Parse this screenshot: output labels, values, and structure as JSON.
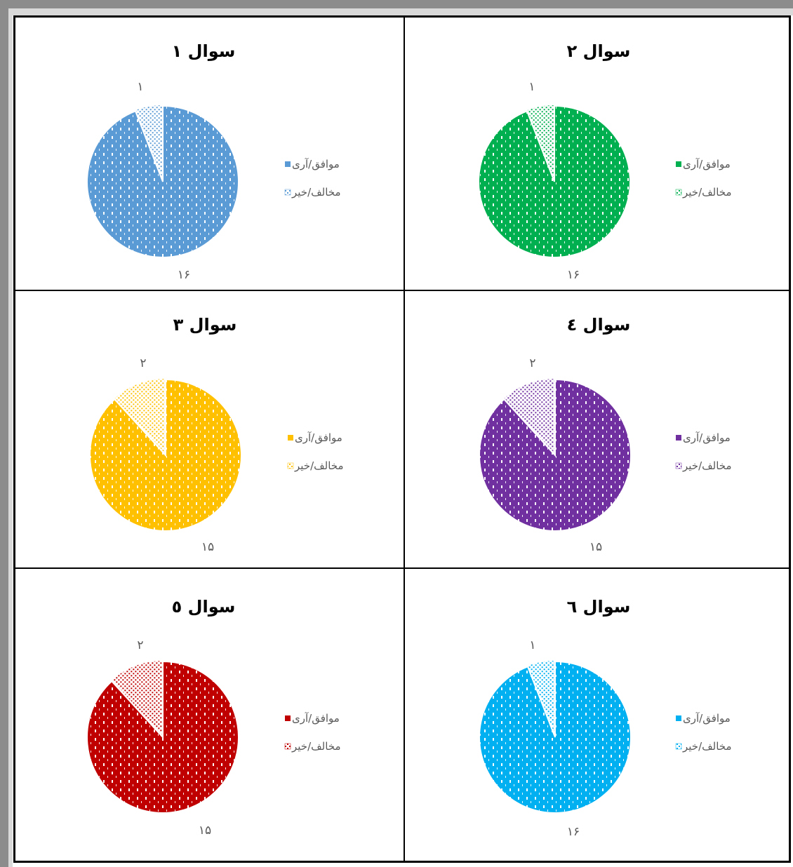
{
  "legend_labels": [
    "موافق/آری",
    "مخالف/خیر"
  ],
  "chart_data": [
    {
      "type": "pie",
      "title": "سوال ۱",
      "categories": [
        "موافق/آری",
        "مخالف/خیر"
      ],
      "values": [
        16,
        1
      ],
      "value_labels": [
        "۱۶",
        "۱"
      ],
      "color": "#5b9bd5",
      "legend": "right"
    },
    {
      "type": "pie",
      "title": "سوال ۲",
      "categories": [
        "موافق/آری",
        "مخالف/خیر"
      ],
      "values": [
        16,
        1
      ],
      "value_labels": [
        "۱۶",
        "۱"
      ],
      "color": "#00b050",
      "legend": "right"
    },
    {
      "type": "pie",
      "title": "سوال ۳",
      "categories": [
        "موافق/آری",
        "مخالف/خیر"
      ],
      "values": [
        15,
        2
      ],
      "value_labels": [
        "۱۵",
        "۲"
      ],
      "color": "#ffc000",
      "legend": "right"
    },
    {
      "type": "pie",
      "title": "سوال ٤",
      "categories": [
        "موافق/آری",
        "مخالف/خیر"
      ],
      "values": [
        15,
        2
      ],
      "value_labels": [
        "۱۵",
        "۲"
      ],
      "color": "#7030a0",
      "legend": "right"
    },
    {
      "type": "pie",
      "title": "سوال ٥",
      "categories": [
        "موافق/آری",
        "مخالف/خیر"
      ],
      "values": [
        15,
        2
      ],
      "value_labels": [
        "۱۵",
        "۲"
      ],
      "color": "#c00000",
      "legend": "right"
    },
    {
      "type": "pie",
      "title": "سوال ٦",
      "categories": [
        "موافق/آری",
        "مخالف/خیر"
      ],
      "values": [
        16,
        1
      ],
      "value_labels": [
        "۱۶",
        "۱"
      ],
      "color": "#00b0f0",
      "legend": "right"
    }
  ]
}
